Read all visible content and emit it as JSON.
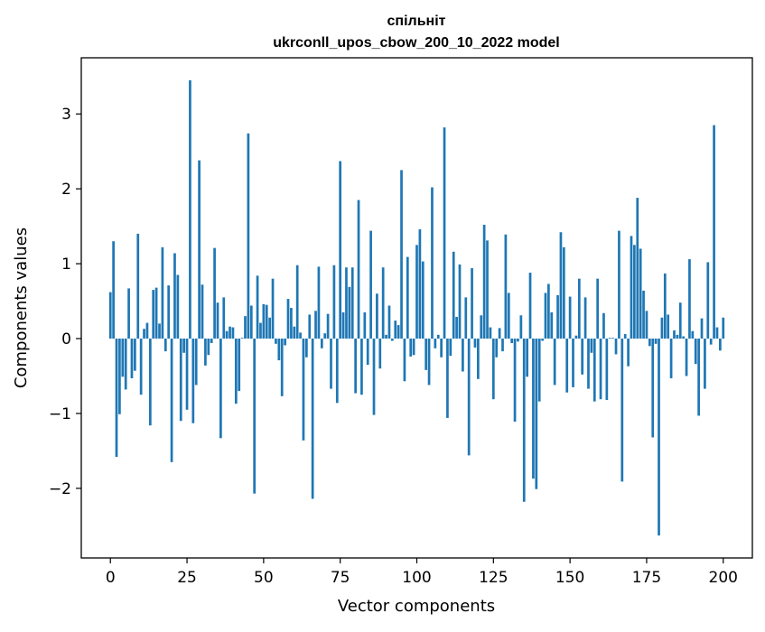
{
  "chart_data": {
    "type": "bar",
    "title_line1": "спільніт",
    "title_line2": "ukrconll_upos_cbow_200_10_2022 model",
    "xlabel": "Vector components",
    "ylabel": "Components values",
    "xlim": [
      -9.5,
      209.5
    ],
    "ylim": [
      -2.93,
      3.75
    ],
    "xticks": [
      0,
      25,
      50,
      75,
      100,
      125,
      150,
      175,
      200
    ],
    "yticks": [
      -2,
      -1,
      0,
      1,
      2,
      3
    ],
    "ytick_labels": [
      "−2",
      "−1",
      "0",
      "1",
      "2",
      "3"
    ],
    "bar_color": "#1f77b4",
    "grid": false,
    "legend": "none",
    "values": [
      0.62,
      1.3,
      -1.58,
      -1.01,
      -0.51,
      -0.68,
      0.67,
      -0.53,
      -0.43,
      1.4,
      -0.75,
      0.13,
      0.21,
      -1.16,
      0.65,
      0.68,
      0.2,
      1.22,
      -0.17,
      0.71,
      -1.65,
      1.14,
      0.85,
      -1.1,
      -0.19,
      -0.95,
      3.45,
      -1.13,
      -0.62,
      2.38,
      0.72,
      -0.36,
      -0.22,
      -0.06,
      1.21,
      0.48,
      -1.33,
      0.55,
      0.1,
      0.16,
      0.15,
      -0.87,
      -0.7,
      0.01,
      0.3,
      2.74,
      0.44,
      -2.07,
      0.84,
      0.21,
      0.46,
      0.45,
      0.28,
      0.8,
      -0.07,
      -0.29,
      -0.77,
      -0.09,
      0.53,
      0.41,
      0.16,
      0.98,
      0.08,
      -1.36,
      -0.25,
      0.32,
      -2.14,
      0.37,
      0.96,
      -0.13,
      0.07,
      0.33,
      -0.67,
      0.98,
      -0.86,
      2.37,
      0.35,
      0.95,
      0.69,
      0.95,
      -0.73,
      1.85,
      -0.75,
      0.35,
      -0.35,
      1.44,
      -1.02,
      0.6,
      -0.4,
      0.95,
      0.05,
      0.44,
      -0.03,
      0.24,
      0.18,
      2.25,
      -0.57,
      1.09,
      -0.24,
      -0.22,
      1.25,
      1.46,
      1.03,
      -0.42,
      -0.62,
      2.02,
      -0.13,
      0.05,
      -0.25,
      2.82,
      -1.06,
      -0.23,
      1.16,
      0.29,
      0.99,
      -0.44,
      0.55,
      -1.56,
      0.94,
      -0.12,
      -0.54,
      0.31,
      1.52,
      1.31,
      0.15,
      -0.81,
      -0.25,
      0.14,
      -0.17,
      1.39,
      0.61,
      -0.06,
      -1.11,
      -0.04,
      0.31,
      -2.18,
      -0.51,
      0.88,
      -1.87,
      -2.01,
      -0.84,
      -0.03,
      0.61,
      0.73,
      0.35,
      -0.62,
      0.58,
      1.42,
      1.22,
      -0.72,
      0.56,
      -0.65,
      0.04,
      0.8,
      -0.48,
      0.55,
      -0.67,
      -0.19,
      -0.84,
      0.8,
      -0.81,
      0.34,
      -0.82,
      0.01,
      0.01,
      -0.21,
      1.44,
      -1.91,
      0.06,
      -0.37,
      1.37,
      1.25,
      1.88,
      1.2,
      0.64,
      0.37,
      -0.1,
      -1.32,
      -0.07,
      -2.63,
      0.28,
      0.87,
      0.32,
      -0.53,
      0.11,
      0.05,
      0.48,
      0.03,
      -0.5,
      1.06,
      0.1,
      -0.34,
      -1.03,
      0.27,
      -0.67,
      1.02,
      -0.08,
      2.85,
      0.15,
      -0.16,
      0.28
    ]
  }
}
